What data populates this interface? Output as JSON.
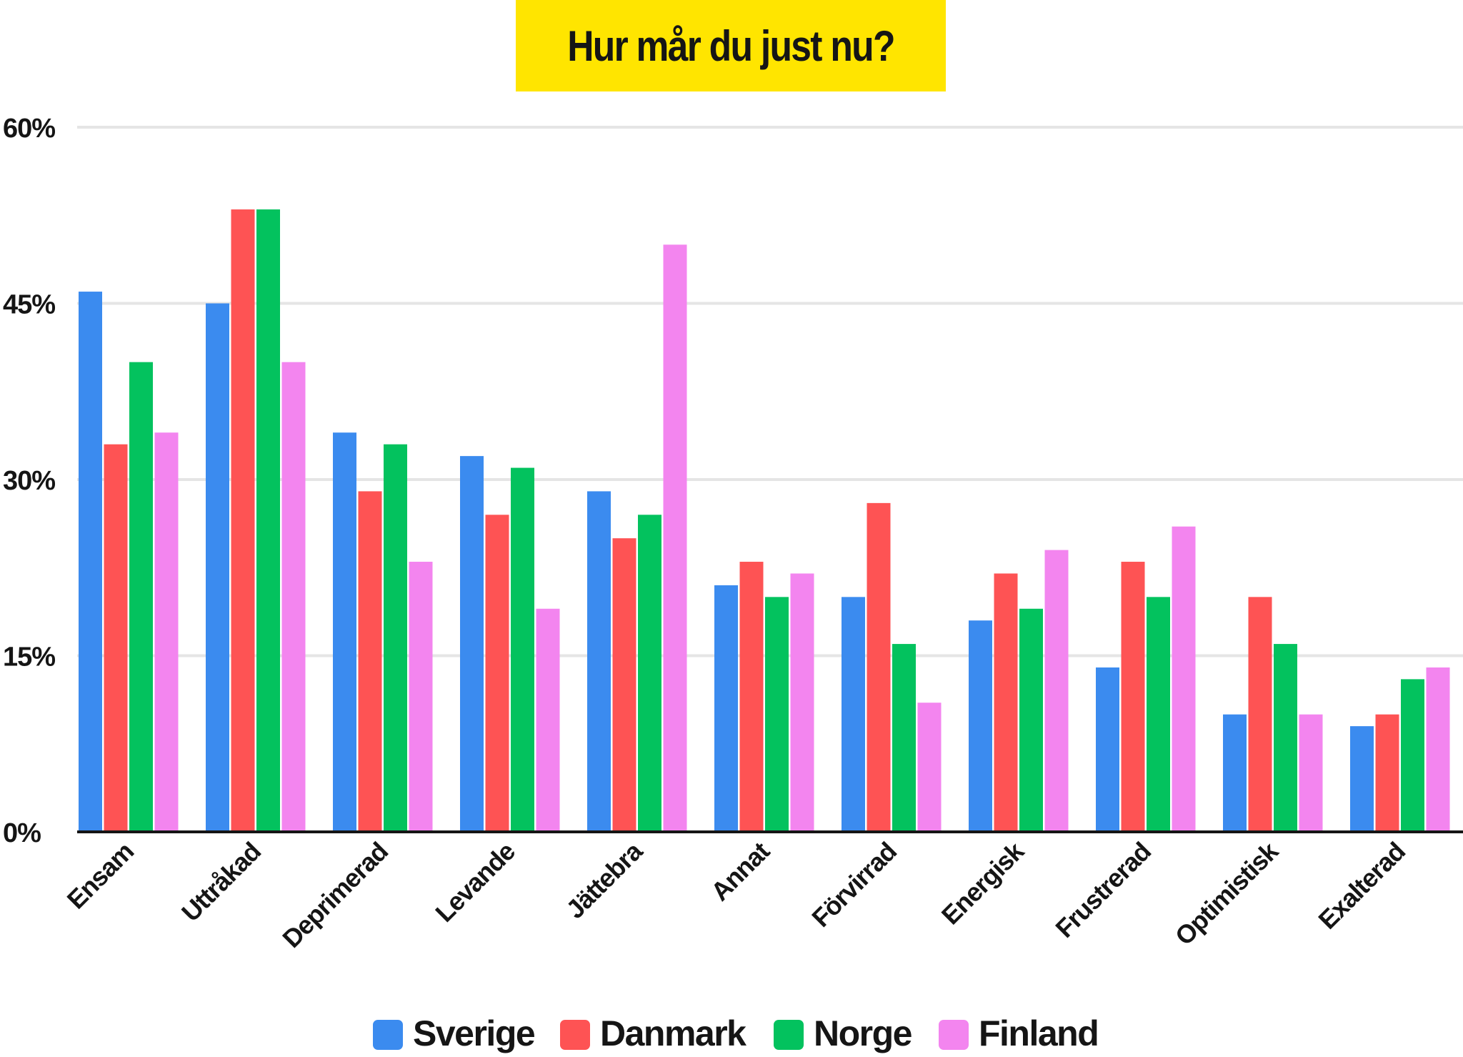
{
  "chart_data": {
    "type": "bar",
    "title": "Hur mår du just nu?",
    "xlabel": "",
    "ylabel": "",
    "ylim": [
      0,
      60
    ],
    "yticks": [
      "0%",
      "15%",
      "30%",
      "45%",
      "60%"
    ],
    "grid": true,
    "legend_position": "bottom",
    "categories": [
      "Ensam",
      "Uttråkad",
      "Deprimerad",
      "Levande",
      "Jättebra",
      "Annat",
      "Förvirrad",
      "Energisk",
      "Frustrerad",
      "Optimistisk",
      "Exalterad"
    ],
    "series": [
      {
        "name": "Sverige",
        "color": "#3b8bef",
        "values": [
          46,
          45,
          34,
          32,
          29,
          21,
          20,
          18,
          14,
          10,
          9
        ]
      },
      {
        "name": "Danmark",
        "color": "#fe5354",
        "values": [
          33,
          53,
          29,
          27,
          25,
          23,
          28,
          22,
          23,
          20,
          10
        ]
      },
      {
        "name": "Norge",
        "color": "#03c25e",
        "values": [
          40,
          53,
          33,
          31,
          27,
          20,
          16,
          19,
          20,
          16,
          13
        ]
      },
      {
        "name": "Finland",
        "color": "#f385ef",
        "values": [
          34,
          40,
          23,
          19,
          50,
          22,
          11,
          24,
          26,
          10,
          14
        ]
      }
    ]
  },
  "style": {
    "title_background": "#ffe500",
    "gridline_color": "#e5e5e5",
    "axis_color": "#151515",
    "text_color": "#151515"
  }
}
